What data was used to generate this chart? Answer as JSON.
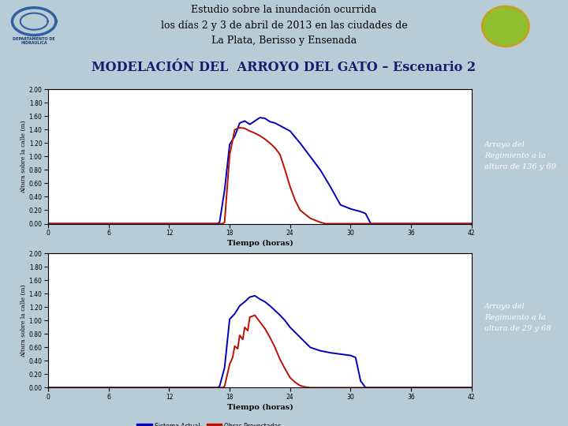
{
  "title_header": "Estudio sobre la inundación ocurrida\nlos días 2 y 3 de abril de 2013 en las ciudades de\nLa Plata, Berisso y Ensenada",
  "subtitle": "MODELACIÓN DEL  ARROYO DEL GATO – Escenario 2",
  "subtitle_bg": "#6fa8c8",
  "header_bg": "#f0f0f0",
  "main_bg": "#b8ccd8",
  "plot_bg": "#ffffff",
  "right_panel_bg": "#1e2f5e",
  "annotation1": "Arroyo del\nRegimiento a la\naltura de 136 y 69",
  "annotation2": "Arroyo del\nRegimiento a la\naltura de 29 y 68",
  "xlabel": "Tiempo (horas)",
  "ylabel1": "Altura sobre la calle (m)",
  "ylabel2": "Altura sobre la calle (m)",
  "legend_blue": "Sistema Actual",
  "legend_red": "Obras Proyectadas",
  "color_blue": "#0000bb",
  "color_red": "#bb1100",
  "xlim": [
    0,
    42
  ],
  "ylim1": [
    0.0,
    2.0
  ],
  "ylim2": [
    0.0,
    2.0
  ],
  "xticks": [
    0,
    6,
    12,
    18,
    24,
    30,
    36,
    42
  ],
  "yticks": [
    0.0,
    0.2,
    0.4,
    0.6,
    0.8,
    1.0,
    1.2,
    1.4,
    1.6,
    1.8,
    2.0
  ],
  "plot1_blue_x": [
    0,
    16.8,
    17.0,
    17.5,
    18.0,
    18.5,
    19.0,
    19.5,
    20.0,
    20.5,
    21.0,
    21.5,
    22.0,
    22.5,
    23.0,
    23.5,
    24.0,
    25.0,
    26.0,
    27.0,
    28.0,
    29.0,
    30.0,
    30.5,
    31.0,
    31.5,
    32.0,
    42
  ],
  "plot1_blue_y": [
    0,
    0,
    0.02,
    0.5,
    1.18,
    1.3,
    1.5,
    1.53,
    1.48,
    1.53,
    1.58,
    1.57,
    1.52,
    1.5,
    1.46,
    1.42,
    1.38,
    1.2,
    1.0,
    0.8,
    0.55,
    0.28,
    0.22,
    0.2,
    0.18,
    0.15,
    0.0,
    0
  ],
  "plot1_red_x": [
    0,
    17.3,
    17.5,
    18.0,
    18.5,
    19.0,
    19.5,
    20.0,
    20.5,
    21.0,
    21.5,
    22.0,
    22.5,
    23.0,
    23.5,
    24.0,
    24.5,
    25.0,
    26.0,
    27.0,
    27.5,
    28.0,
    42
  ],
  "plot1_red_y": [
    0,
    0,
    0.02,
    1.02,
    1.4,
    1.43,
    1.42,
    1.38,
    1.35,
    1.31,
    1.26,
    1.2,
    1.13,
    1.03,
    0.8,
    0.55,
    0.35,
    0.2,
    0.08,
    0.02,
    0.0,
    0,
    0
  ],
  "plot2_blue_x": [
    0,
    16.8,
    17.0,
    17.5,
    18.0,
    18.5,
    19.0,
    19.5,
    20.0,
    20.5,
    21.0,
    21.5,
    22.0,
    22.5,
    23.0,
    23.5,
    24.0,
    25.0,
    26.0,
    27.0,
    28.0,
    29.0,
    30.0,
    30.5,
    31.0,
    31.5,
    42
  ],
  "plot2_blue_y": [
    0,
    0,
    0.02,
    0.3,
    1.02,
    1.1,
    1.22,
    1.28,
    1.35,
    1.37,
    1.32,
    1.28,
    1.22,
    1.15,
    1.08,
    1.0,
    0.9,
    0.75,
    0.6,
    0.55,
    0.52,
    0.5,
    0.48,
    0.45,
    0.1,
    0.0,
    0
  ],
  "plot2_red_x": [
    0,
    17.3,
    17.5,
    18.0,
    18.3,
    18.5,
    18.8,
    19.0,
    19.3,
    19.5,
    19.8,
    20.0,
    20.5,
    21.0,
    21.5,
    22.0,
    22.5,
    23.0,
    23.5,
    24.0,
    24.5,
    25.0,
    25.5,
    26.0,
    42
  ],
  "plot2_red_y": [
    0,
    0,
    0.02,
    0.35,
    0.45,
    0.62,
    0.58,
    0.78,
    0.72,
    0.9,
    0.85,
    1.05,
    1.08,
    0.98,
    0.88,
    0.75,
    0.6,
    0.42,
    0.28,
    0.15,
    0.08,
    0.03,
    0.01,
    0.0,
    0
  ]
}
